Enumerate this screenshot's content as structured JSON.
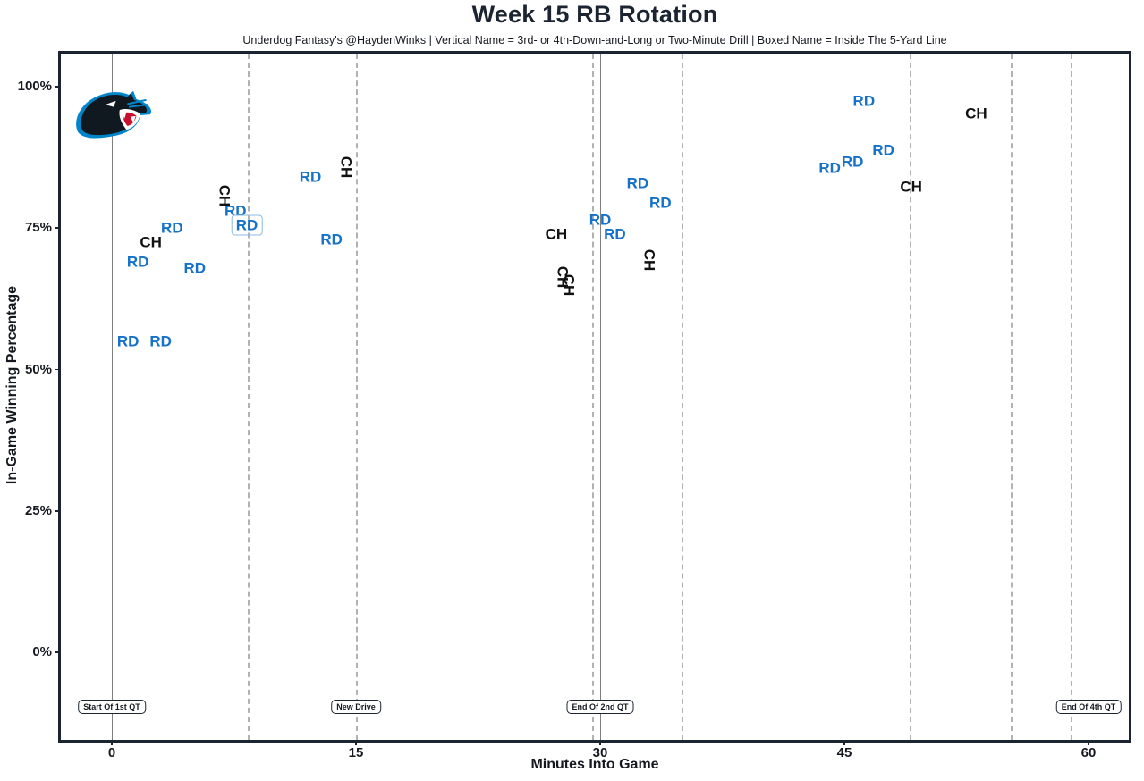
{
  "chart": {
    "title": "Week 15 RB Rotation",
    "subtitle": "Underdog Fantasy's @HaydenWinks | Vertical Name = 3rd- or 4th-Down-and-Long or Two-Minute Drill | Boxed Name = Inside The 5-Yard Line",
    "x_axis": {
      "label": "Minutes Into Game",
      "ticks": [
        0,
        15,
        30,
        45,
        60
      ],
      "range": [
        0,
        60
      ]
    },
    "y_axis": {
      "label": "In-Game Winning Percentage",
      "ticks": [
        {
          "label": "100%",
          "value": 100
        },
        {
          "label": "75%",
          "value": 75
        },
        {
          "label": "50%",
          "value": 50
        },
        {
          "label": "25%",
          "value": 25
        },
        {
          "label": "0%",
          "value": 0
        }
      ],
      "range": [
        0,
        100
      ]
    }
  },
  "colors": {
    "rd_blue": "#1572C8",
    "ch_black": "#111111",
    "frame": "#1C2431",
    "solid_event_line": "#808080",
    "dashed_event_line": "#B2B2B2",
    "panthers_blue": "#0085CA",
    "panthers_black": "#101820"
  },
  "icons": {
    "logo": "carolina-panthers-logo"
  },
  "event_lines": [
    {
      "min": 0,
      "style": "solid",
      "label": "Start Of 1st QT"
    },
    {
      "min": 8.35,
      "style": "dashed",
      "label": ""
    },
    {
      "min": 15,
      "style": "dashed",
      "label": "New Drive"
    },
    {
      "min": 29.5,
      "style": "dashed",
      "label": ""
    },
    {
      "min": 30,
      "style": "solid",
      "label": "End Of 2nd QT"
    },
    {
      "min": 35,
      "style": "dashed",
      "label": ""
    },
    {
      "min": 49,
      "style": "dashed",
      "label": ""
    },
    {
      "min": 55.2,
      "style": "dashed",
      "label": ""
    },
    {
      "min": 58.9,
      "style": "dashed",
      "label": ""
    },
    {
      "min": 60,
      "style": "solid",
      "label": "End Of 4th QT"
    }
  ],
  "chart_data": {
    "type": "scatter",
    "title": "Week 15 RB Rotation",
    "xlabel": "Minutes Into Game",
    "ylabel": "In-Game Winning Percentage",
    "xlim": [
      -3.2,
      62.5
    ],
    "ylim": [
      -15,
      105
    ],
    "grid": "vertical-event-lines-only",
    "legend_position": "none",
    "series": [
      {
        "name": "RD",
        "color": "#1572C8",
        "points": [
          {
            "min": 1.0,
            "win_pct": 55,
            "vertical": false,
            "boxed": false
          },
          {
            "min": 3.0,
            "win_pct": 55,
            "vertical": false,
            "boxed": false
          },
          {
            "min": 1.6,
            "win_pct": 69,
            "vertical": false,
            "boxed": false
          },
          {
            "min": 3.7,
            "win_pct": 75,
            "vertical": false,
            "boxed": false
          },
          {
            "min": 5.1,
            "win_pct": 68,
            "vertical": false,
            "boxed": false
          },
          {
            "min": 7.6,
            "win_pct": 78,
            "vertical": false,
            "boxed": false
          },
          {
            "min": 8.3,
            "win_pct": 75.5,
            "vertical": false,
            "boxed": true
          },
          {
            "min": 12.2,
            "win_pct": 84,
            "vertical": false,
            "boxed": false
          },
          {
            "min": 13.5,
            "win_pct": 73,
            "vertical": false,
            "boxed": false
          },
          {
            "min": 30.0,
            "win_pct": 76.5,
            "vertical": false,
            "boxed": false
          },
          {
            "min": 30.9,
            "win_pct": 74,
            "vertical": false,
            "boxed": false
          },
          {
            "min": 32.3,
            "win_pct": 83,
            "vertical": false,
            "boxed": false
          },
          {
            "min": 33.7,
            "win_pct": 79.5,
            "vertical": false,
            "boxed": false
          },
          {
            "min": 44.1,
            "win_pct": 85.7,
            "vertical": false,
            "boxed": false
          },
          {
            "min": 45.5,
            "win_pct": 86.8,
            "vertical": false,
            "boxed": false
          },
          {
            "min": 47.4,
            "win_pct": 88.8,
            "vertical": false,
            "boxed": false
          },
          {
            "min": 46.2,
            "win_pct": 97.5,
            "vertical": false,
            "boxed": false
          }
        ]
      },
      {
        "name": "CH",
        "color": "#111111",
        "points": [
          {
            "min": 2.4,
            "win_pct": 72.5,
            "vertical": false,
            "boxed": false
          },
          {
            "min": 6.9,
            "win_pct": 80.7,
            "vertical": true,
            "boxed": false
          },
          {
            "min": 14.4,
            "win_pct": 85.8,
            "vertical": true,
            "boxed": false
          },
          {
            "min": 27.3,
            "win_pct": 74,
            "vertical": false,
            "boxed": false
          },
          {
            "min": 27.7,
            "win_pct": 66.3,
            "vertical": true,
            "boxed": false
          },
          {
            "min": 28.1,
            "win_pct": 65,
            "vertical": true,
            "boxed": false
          },
          {
            "min": 33.0,
            "win_pct": 69.3,
            "vertical": true,
            "boxed": false
          },
          {
            "min": 49.1,
            "win_pct": 82.3,
            "vertical": false,
            "boxed": false
          },
          {
            "min": 53.1,
            "win_pct": 95.3,
            "vertical": false,
            "boxed": false
          }
        ]
      }
    ]
  }
}
